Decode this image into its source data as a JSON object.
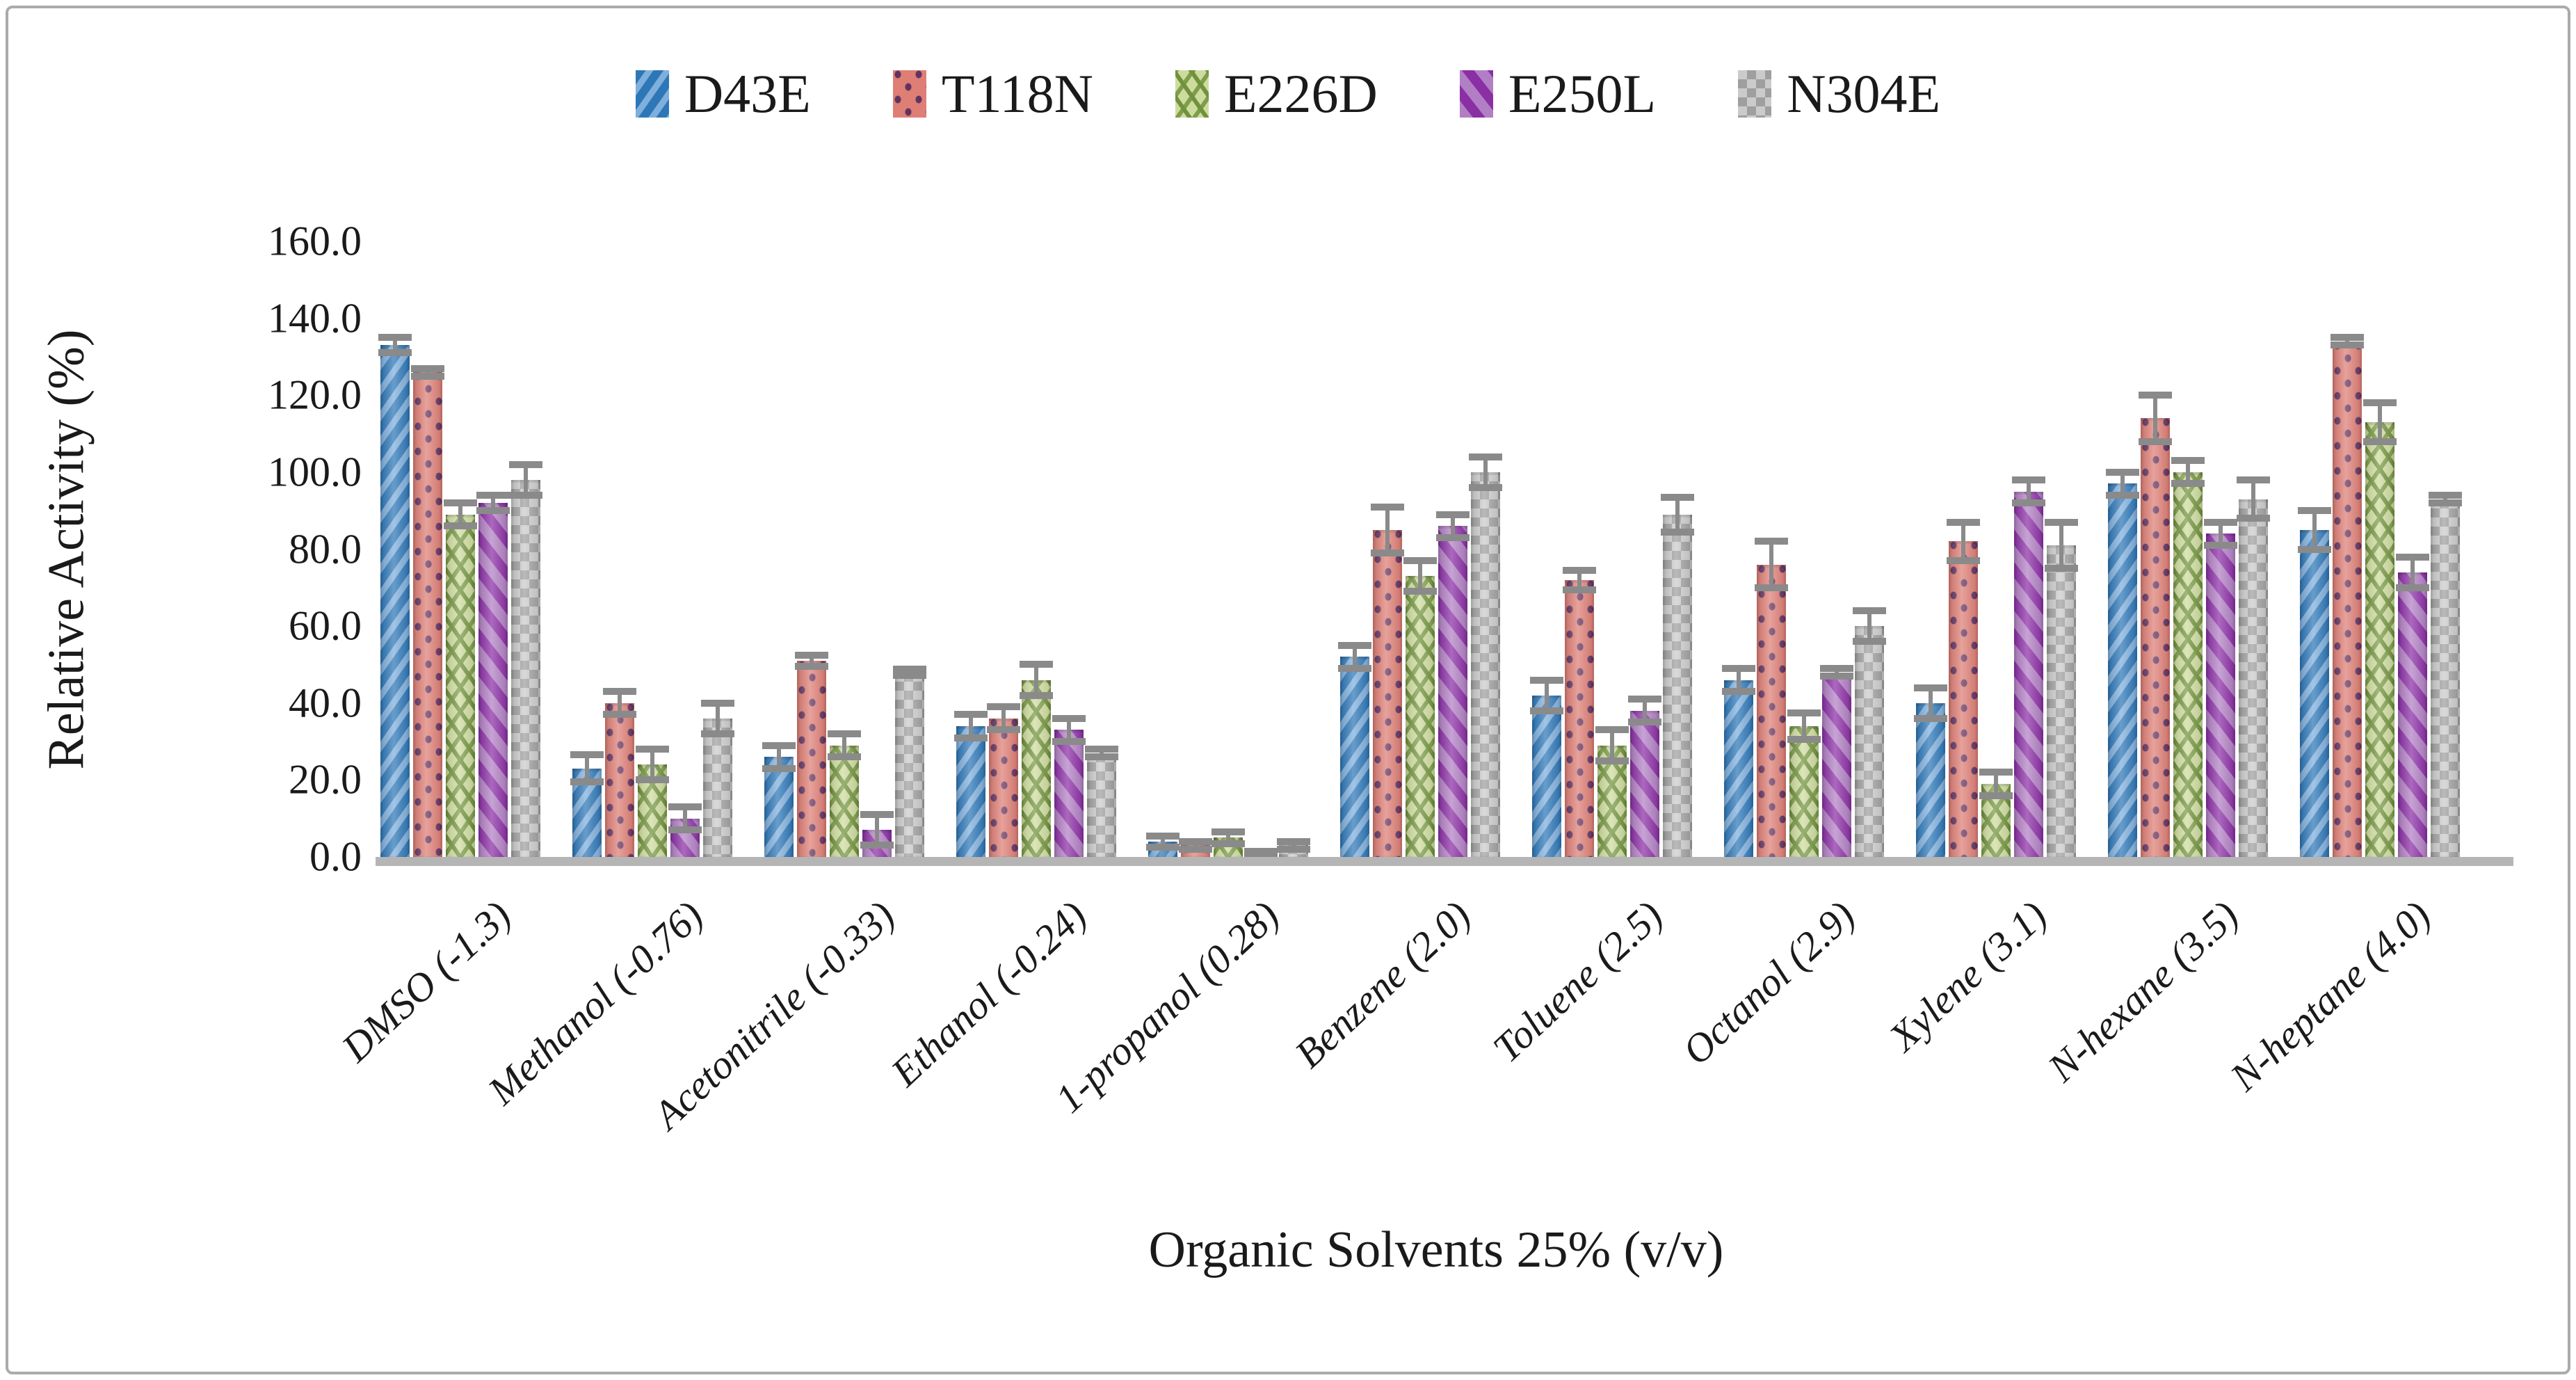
{
  "figure": {
    "background": "#ffffff",
    "frame_border_color": "#ababab",
    "axis_line_color": "#b5b5b5",
    "error_bar_color": "#8a8a8a",
    "text_color": "#1a1a1a"
  },
  "chart_data": {
    "type": "bar",
    "title": "",
    "xlabel": "Organic Solvents 25% (v/v)",
    "ylabel": "Relative Activity (%)",
    "ylim": [
      0,
      160
    ],
    "ytick_step": 20,
    "ytick_labels": [
      "0.0",
      "20.0",
      "40.0",
      "60.0",
      "80.0",
      "100.0",
      "120.0",
      "140.0",
      "160.0"
    ],
    "grid": false,
    "legend_position": "top-center",
    "error_bars": true,
    "categories": [
      "DMSO (-1.3)",
      "Methanol (-0.76)",
      "Acetonitrile (-0.33)",
      "Ethanol (-0.24)",
      "1-propanol (0.28)",
      "Benzene (2.0)",
      "Toluene (2.5)",
      "Octanol (2.9)",
      "Xylene (3.1)",
      "N-hexane (3.5)",
      "N-heptane (4.0)"
    ],
    "series": [
      {
        "name": "D43E",
        "pattern": "blue-diagonal-stripes",
        "base_color": "#2e77b7",
        "pattern_color": "#7fafdc",
        "values": [
          133,
          23,
          26,
          34,
          4,
          52,
          42,
          46,
          40,
          97,
          85
        ],
        "errors": [
          2,
          3.5,
          3,
          3,
          1.5,
          3,
          4,
          3,
          4,
          3,
          5
        ]
      },
      {
        "name": "T118N",
        "pattern": "salmon-dark-dots",
        "base_color": "#de7e75",
        "pattern_color": "#5a2f60",
        "values": [
          126,
          40,
          51,
          36,
          3,
          85,
          72,
          76,
          82,
          114,
          134
        ],
        "errors": [
          1,
          3,
          1.5,
          3,
          1,
          6,
          2.5,
          6,
          5,
          6,
          1
        ]
      },
      {
        "name": "E226D",
        "pattern": "green-lattice",
        "base_color": "#cddc9e",
        "pattern_color": "#71923d",
        "values": [
          89,
          24,
          29,
          46,
          5,
          73,
          29,
          34,
          19,
          100,
          113
        ],
        "errors": [
          3,
          4,
          3,
          4,
          1.5,
          4,
          4,
          3.5,
          3,
          3,
          5
        ]
      },
      {
        "name": "E250L",
        "pattern": "purple-diagonal-stripes",
        "base_color": "#b27fc4",
        "pattern_color": "#8b2fa5",
        "values": [
          92,
          10,
          7,
          33,
          1,
          86,
          38,
          48,
          95,
          84,
          74
        ],
        "errors": [
          2,
          3,
          4,
          3,
          0.5,
          3,
          3,
          1,
          3,
          3,
          4
        ]
      },
      {
        "name": "N304E",
        "pattern": "gray-checkerboard",
        "base_color": "#cbcbcb",
        "pattern_color": "#9f9f9f",
        "values": [
          98,
          36,
          48,
          27,
          3,
          100,
          89,
          60,
          81,
          93,
          93
        ],
        "errors": [
          4,
          4,
          0.8,
          1,
          1,
          4,
          4.5,
          4,
          6,
          5,
          1
        ]
      }
    ]
  }
}
